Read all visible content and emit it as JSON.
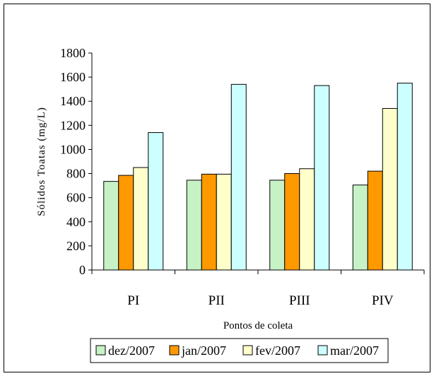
{
  "chart_data": {
    "type": "bar",
    "categories": [
      "PI",
      "PII",
      "PIII",
      "PIV"
    ],
    "series": [
      {
        "name": "dez/2007",
        "values": [
          735,
          745,
          745,
          705
        ],
        "color": "#c6f2c6"
      },
      {
        "name": "jan/2007",
        "values": [
          785,
          795,
          800,
          820
        ],
        "color": "#ff9900"
      },
      {
        "name": "fev/2007",
        "values": [
          850,
          795,
          840,
          1340
        ],
        "color": "#ffffcc"
      },
      {
        "name": "mar/2007",
        "values": [
          1140,
          1540,
          1530,
          1550
        ],
        "color": "#ccffff"
      }
    ],
    "xlabel": "Pontos de coleta",
    "ylabel": "Sólidos Toatas (mg/L)",
    "ylim": [
      0,
      1800
    ],
    "yticks": [
      0,
      200,
      400,
      600,
      800,
      1000,
      1200,
      1400,
      1600,
      1800
    ],
    "grid": false,
    "legend_position": "bottom"
  }
}
